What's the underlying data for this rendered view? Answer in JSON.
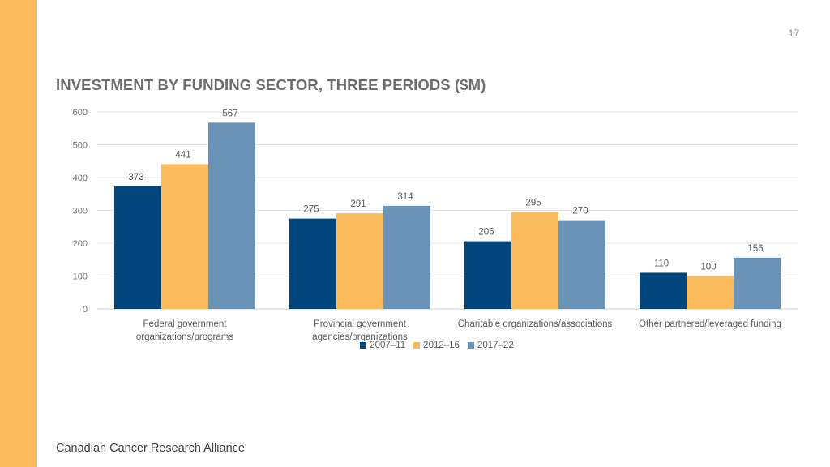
{
  "page": {
    "number": "17",
    "title": "INVESTMENT BY FUNDING SECTOR, THREE PERIODS ($M)",
    "footer": "Canadian Cancer Research Alliance",
    "accent_color": "#F9BB5E"
  },
  "chart_data": {
    "type": "bar",
    "title": "INVESTMENT BY FUNDING SECTOR, THREE PERIODS ($M)",
    "xlabel": "",
    "ylabel": "",
    "ylim": [
      0,
      600
    ],
    "yticks": [
      0,
      100,
      200,
      300,
      400,
      500,
      600
    ],
    "grid": true,
    "legend_position": "bottom",
    "categories": [
      [
        "Federal government",
        "organizations/programs"
      ],
      [
        "Provincial government",
        "agencies/organizations"
      ],
      [
        "Charitable organizations/associations"
      ],
      [
        "Other partnered/leveraged funding"
      ]
    ],
    "series": [
      {
        "name": "2007–11",
        "color": "#00457C",
        "values": [
          373,
          275,
          206,
          110
        ]
      },
      {
        "name": "2012–16",
        "color": "#F9BB5E",
        "values": [
          441,
          291,
          295,
          100
        ]
      },
      {
        "name": "2017–22",
        "color": "#6B93B8",
        "values": [
          567,
          314,
          270,
          156
        ]
      }
    ]
  }
}
